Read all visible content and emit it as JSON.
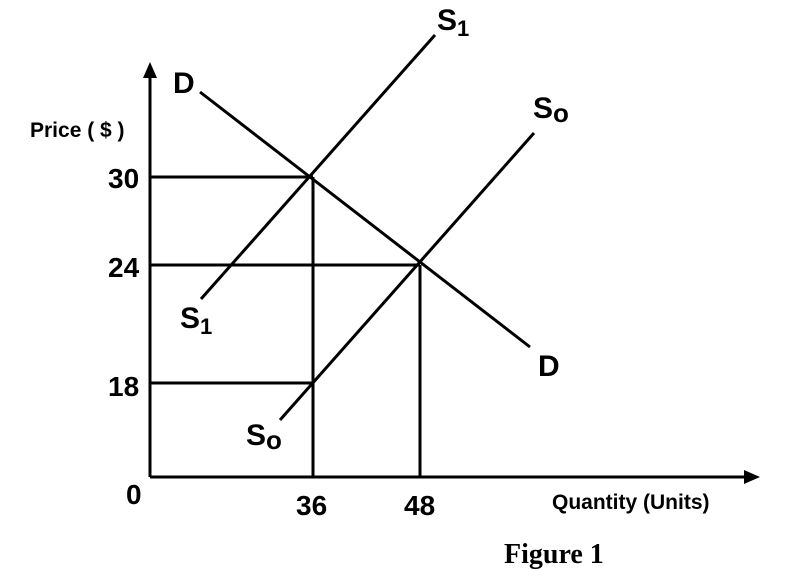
{
  "figure": {
    "caption": "Figure 1",
    "y_axis_label": "Price ( $ )",
    "x_axis_label": "Quantity (Units)",
    "origin_label": "0",
    "y_ticks": [
      "30",
      "24",
      "18"
    ],
    "x_ticks": [
      "36",
      "48"
    ],
    "curves": {
      "demand": {
        "label_main": "D"
      },
      "supply_new": {
        "label_main": "S",
        "label_sub": "1"
      },
      "supply_old": {
        "label_main": "S",
        "label_sub": "o"
      }
    }
  },
  "chart_data": {
    "type": "line",
    "xlabel": "Quantity (Units)",
    "ylabel": "Price ( $ )",
    "series": [
      {
        "name": "D",
        "points": [
          [
            36,
            30
          ],
          [
            48,
            24
          ]
        ]
      },
      {
        "name": "S1",
        "points": [
          [
            36,
            30
          ]
        ]
      },
      {
        "name": "So",
        "points": [
          [
            36,
            18
          ],
          [
            48,
            24
          ]
        ]
      }
    ],
    "equilibria": [
      {
        "curves": [
          "D",
          "S1"
        ],
        "quantity": 36,
        "price": 30
      },
      {
        "curves": [
          "D",
          "So"
        ],
        "quantity": 48,
        "price": 24
      }
    ],
    "reference_point": {
      "curve": "So",
      "quantity": 36,
      "price": 18
    },
    "x_ticks": [
      36,
      48
    ],
    "y_ticks": [
      18,
      24,
      30
    ]
  }
}
